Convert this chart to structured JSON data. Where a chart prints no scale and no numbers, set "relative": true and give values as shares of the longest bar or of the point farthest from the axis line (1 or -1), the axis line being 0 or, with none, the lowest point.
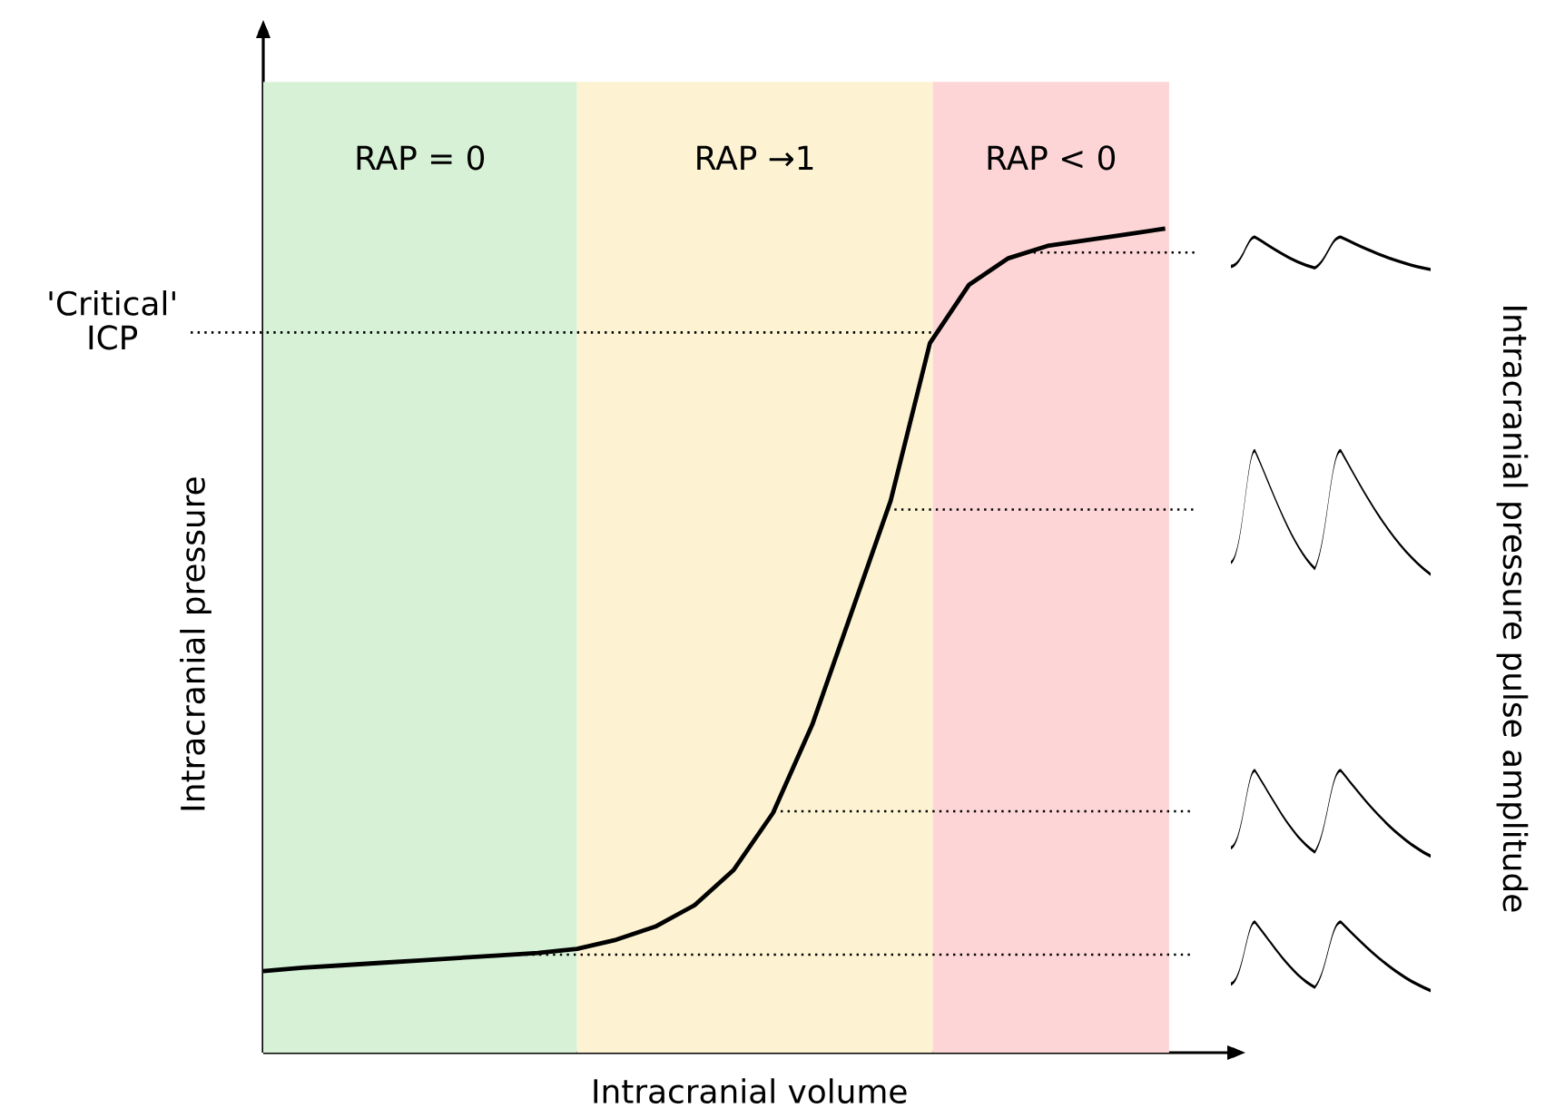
{
  "chart_data": {
    "type": "line",
    "relative": true,
    "tick_labels": false,
    "xlabel": "Intracranial volume",
    "ylabel": "Intracranial pressure",
    "annotations": [
      "RAP = 0",
      "RAP →1",
      "RAP < 0",
      "Intracranial pressure pulse amplitude"
    ],
    "categories": [
      null,
      null,
      null,
      null,
      null,
      null,
      null,
      null,
      null,
      null,
      null,
      null,
      null,
      null,
      null,
      null,
      null,
      null,
      null,
      null,
      null,
      null,
      null,
      null
    ],
    "series": [
      {
        "color": "#000000",
        "values": [
          0.099,
          0.103,
          0.106,
          0.109,
          0.112,
          0.115,
          0.118,
          0.121,
          0.126,
          0.137,
          0.153,
          0.179,
          0.222,
          0.291,
          0.398,
          0.534,
          0.67,
          0.861,
          0.932,
          0.964,
          0.979,
          0.986,
          0.993,
          1
        ]
      }
    ],
    "ref_lines": [
      {
        "axis": "y",
        "value": 0.874,
        "label": "'Critical' ICP",
        "line_style": "dotted"
      },
      {
        "axis": "y",
        "value": 0.971,
        "line_style": "dotted"
      },
      {
        "axis": "y",
        "value": 0.659,
        "line_style": "dotted"
      },
      {
        "axis": "y",
        "value": 0.293,
        "line_style": "dotted"
      },
      {
        "axis": "y",
        "value": 0.119,
        "line_style": "dotted"
      }
    ],
    "marker": "none",
    "line_style": "solid"
  }
}
